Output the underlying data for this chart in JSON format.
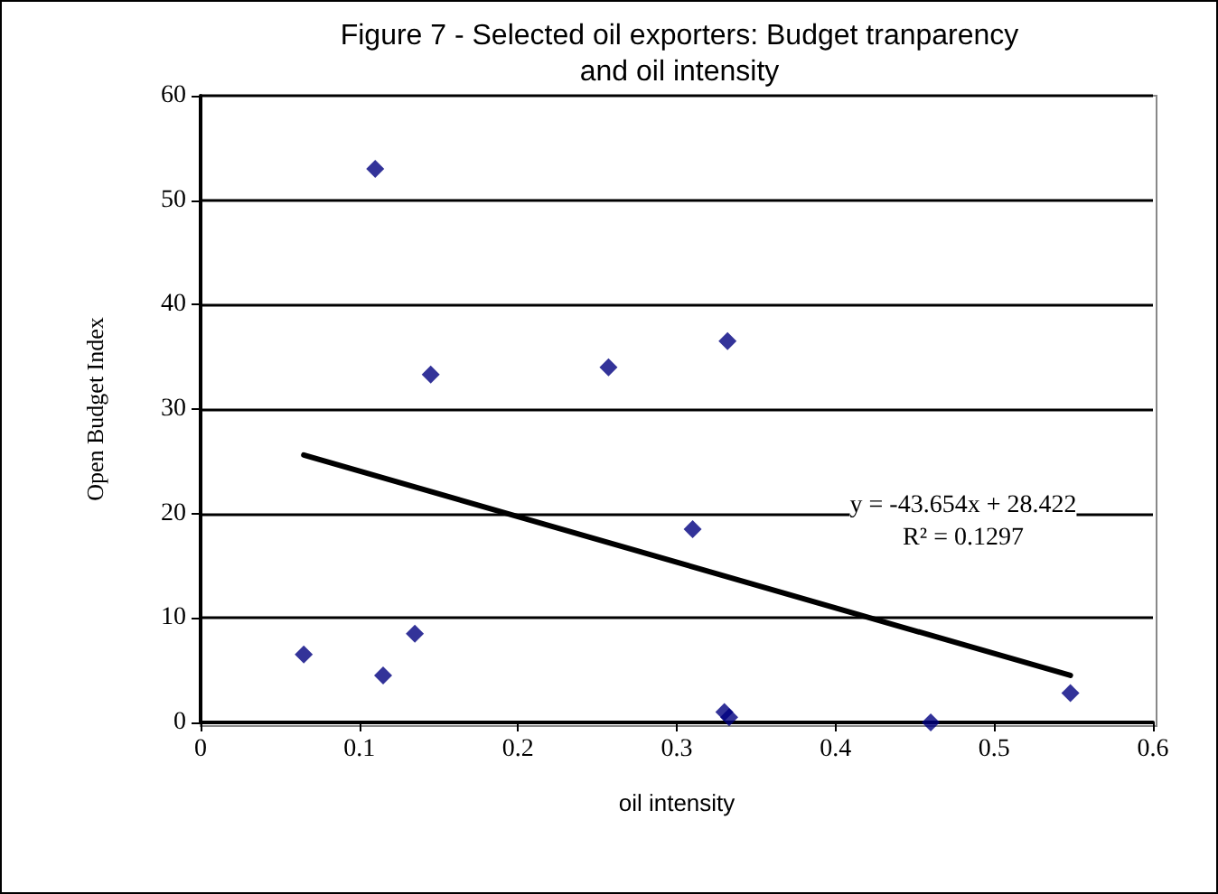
{
  "chart_data": {
    "type": "scatter",
    "title": "Figure 7 - Selected oil exporters: Budget tranparency\nand oil intensity",
    "xlabel": "oil intensity",
    "ylabel": "Open Budget Index",
    "series": [
      {
        "color": "#000080",
        "x": [
          0.065,
          0.11,
          0.115,
          0.135,
          0.145,
          0.257,
          0.31,
          0.332,
          0.33,
          0.333,
          0.46,
          0.548
        ],
        "values": [
          6.5,
          53,
          4.5,
          8.5,
          33.3,
          34,
          18.5,
          36.5,
          1,
          0.5,
          0,
          2.8
        ]
      },
      {
        "type": "line",
        "color": "#000000",
        "x": [
          0.065,
          0.548
        ],
        "values": [
          25.6,
          4.5
        ],
        "marker": "none"
      }
    ],
    "marker": "diamond",
    "xlim": [
      0,
      0.6
    ],
    "xticks": [
      0,
      0.1,
      0.2,
      0.3,
      0.4,
      0.5,
      0.6
    ],
    "ylim": [
      0,
      60
    ],
    "yticks": [
      0,
      10,
      20,
      30,
      40,
      50,
      60
    ],
    "grid": "y",
    "annotations": [
      "y = -43.654x + 28.422",
      "R² = 0.1297"
    ]
  }
}
